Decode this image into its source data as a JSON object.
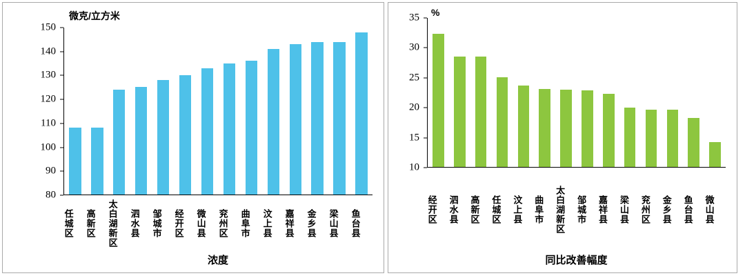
{
  "chart_data": [
    {
      "type": "bar",
      "title": "",
      "unit_label": "微克/立方米",
      "xlabel": "浓度",
      "ylim": [
        80,
        150
      ],
      "yticks": [
        80,
        90,
        100,
        110,
        120,
        130,
        140,
        150
      ],
      "grid": false,
      "legend": "none",
      "bar_color": "#4ec1e9",
      "categories": [
        "任城区",
        "高新区",
        "太白湖新区",
        "泗水县",
        "邹城市",
        "经开区",
        "微山县",
        "兖州区",
        "曲阜市",
        "汶上县",
        "嘉祥县",
        "金乡县",
        "梁山县",
        "鱼台县"
      ],
      "values": [
        108,
        108,
        124,
        125,
        128,
        130,
        133,
        135,
        136,
        141,
        143,
        144,
        144,
        148
      ]
    },
    {
      "type": "bar",
      "title": "",
      "unit_label": "%",
      "xlabel": "同比改善幅度",
      "ylim": [
        10,
        35
      ],
      "yticks": [
        10,
        15,
        20,
        25,
        30,
        35
      ],
      "grid": false,
      "legend": "none",
      "bar_color": "#8dc63f",
      "categories": [
        "经开区",
        "泗水县",
        "高新区",
        "任城区",
        "汶上县",
        "曲阜市",
        "太白湖新区",
        "邹城市",
        "嘉祥县",
        "梁山县",
        "兖州区",
        "金乡县",
        "鱼台县",
        "微山县"
      ],
      "values": [
        32.3,
        28.5,
        28.5,
        25.0,
        23.7,
        23.1,
        23.0,
        22.9,
        22.3,
        20.0,
        19.6,
        19.6,
        18.2,
        14.2
      ]
    }
  ]
}
